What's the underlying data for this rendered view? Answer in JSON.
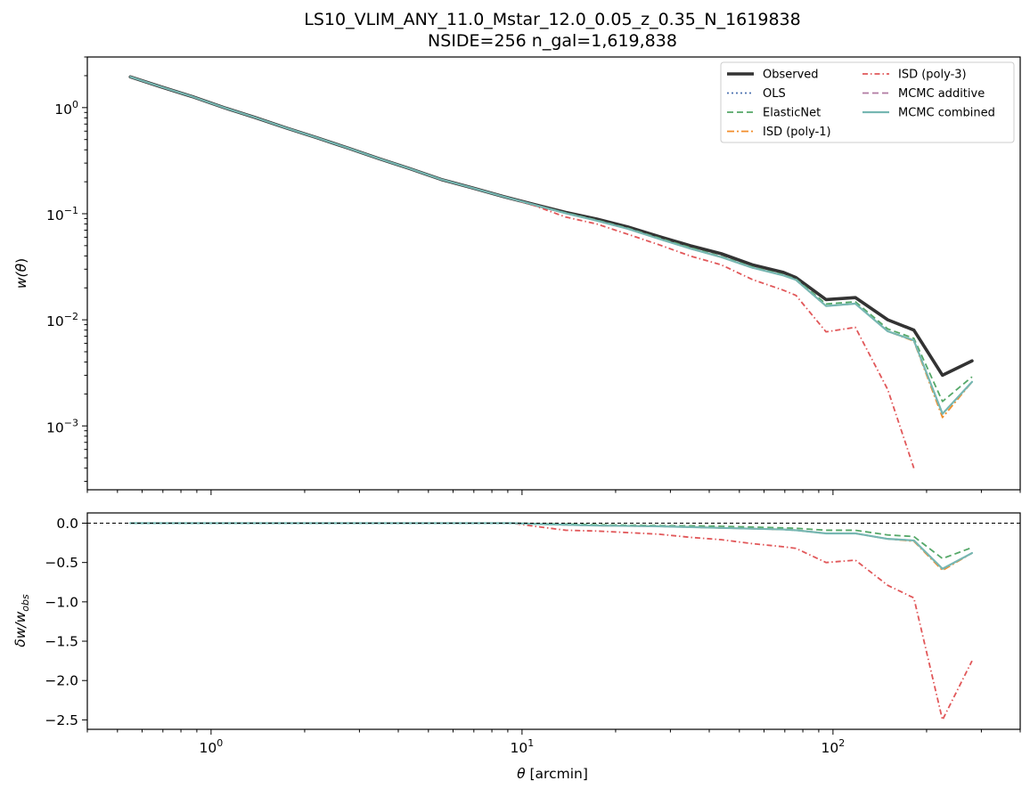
{
  "chart_data": [
    {
      "type": "line",
      "panel": "top",
      "title_line1": "LS10_VLIM_ANY_11.0_Mstar_12.0_0.05_z_0.35_N_1619838",
      "title_line2": "NSIDE=256  n_gal=1,619,838",
      "ylabel_main": "w(",
      "ylabel_theta": "θ",
      "ylabel_close": ")",
      "xscale": "log",
      "yscale": "log",
      "xlim": [
        0.4,
        400
      ],
      "ylim": [
        0.00025,
        3.0
      ],
      "legend_position": "upper right",
      "x_ticks": [
        {
          "value": 1,
          "base": "10",
          "exp": "0"
        },
        {
          "value": 10,
          "base": "10",
          "exp": "1"
        },
        {
          "value": 100,
          "base": "10",
          "exp": "2"
        }
      ],
      "y_ticks": [
        {
          "value": 1,
          "base": "10",
          "exp": "0"
        },
        {
          "value": 0.1,
          "base": "10",
          "exp": "−1"
        },
        {
          "value": 0.01,
          "base": "10",
          "exp": "−2"
        },
        {
          "value": 0.001,
          "base": "10",
          "exp": "−3"
        }
      ],
      "x": [
        0.55,
        0.69,
        0.87,
        1.1,
        1.38,
        1.74,
        2.19,
        2.76,
        3.47,
        4.37,
        5.5,
        6.93,
        8.72,
        10.98,
        13.82,
        17.4,
        21.9,
        27.57,
        34.71,
        43.7,
        55.0,
        69.3,
        76.0,
        95.0,
        118.0,
        150.0,
        182.0,
        225.0,
        280.0
      ],
      "series": [
        {
          "name": "Observed",
          "color": "#333333",
          "dash": "",
          "width": 3.6,
          "values": [
            1.95,
            1.57,
            1.27,
            1.0,
            0.81,
            0.645,
            0.52,
            0.415,
            0.33,
            0.265,
            0.21,
            0.175,
            0.145,
            0.122,
            0.103,
            0.089,
            0.075,
            0.061,
            0.05,
            0.042,
            0.033,
            0.028,
            0.025,
            0.0155,
            0.0162,
            0.01,
            0.008,
            0.003,
            0.0041
          ]
        },
        {
          "name": "OLS",
          "color": "#4c72b0",
          "dash": "2,3",
          "width": 1.8,
          "values": [
            1.95,
            1.57,
            1.27,
            1.0,
            0.81,
            0.645,
            0.52,
            0.415,
            0.33,
            0.265,
            0.21,
            0.175,
            0.145,
            0.121,
            0.101,
            0.086,
            0.072,
            0.058,
            0.047,
            0.039,
            0.031,
            0.0262,
            0.0238,
            0.0135,
            0.0142,
            0.0078,
            0.0064,
            0.0013,
            0.0026
          ]
        },
        {
          "name": "ElasticNet",
          "color": "#55a868",
          "dash": "7,4",
          "width": 1.8,
          "values": [
            1.95,
            1.57,
            1.27,
            1.0,
            0.81,
            0.645,
            0.52,
            0.415,
            0.33,
            0.265,
            0.21,
            0.175,
            0.145,
            0.121,
            0.102,
            0.087,
            0.073,
            0.059,
            0.048,
            0.0395,
            0.0315,
            0.0266,
            0.0242,
            0.0141,
            0.0148,
            0.0082,
            0.0067,
            0.0017,
            0.0029
          ]
        },
        {
          "name": "ISD (poly-1)",
          "color": "#f28e2b",
          "dash": "8,3,2,3",
          "width": 1.8,
          "values": [
            1.95,
            1.57,
            1.27,
            1.0,
            0.81,
            0.645,
            0.52,
            0.415,
            0.33,
            0.265,
            0.21,
            0.175,
            0.145,
            0.121,
            0.101,
            0.086,
            0.072,
            0.058,
            0.047,
            0.039,
            0.031,
            0.0262,
            0.0238,
            0.0135,
            0.0142,
            0.0078,
            0.0063,
            0.0012,
            0.0026
          ]
        },
        {
          "name": "ISD (poly-3)",
          "color": "#e15759",
          "dash": "6,3,1.5,3",
          "width": 1.8,
          "values": [
            1.95,
            1.57,
            1.27,
            1.0,
            0.81,
            0.645,
            0.52,
            0.415,
            0.33,
            0.265,
            0.21,
            0.175,
            0.145,
            0.119,
            0.093,
            0.08,
            0.064,
            0.051,
            0.04,
            0.033,
            0.024,
            0.019,
            0.017,
            0.0077,
            0.0085,
            0.0022,
            0.0004,
            null,
            null
          ]
        },
        {
          "name": "MCMC additive",
          "color": "#b07aa1",
          "dash": "7,4",
          "width": 1.8,
          "values": [
            1.95,
            1.57,
            1.27,
            1.0,
            0.81,
            0.645,
            0.52,
            0.415,
            0.33,
            0.265,
            0.21,
            0.175,
            0.145,
            0.121,
            0.101,
            0.086,
            0.072,
            0.058,
            0.047,
            0.039,
            0.031,
            0.0262,
            0.0238,
            0.0135,
            0.0142,
            0.0078,
            0.0064,
            0.0013,
            0.0026
          ]
        },
        {
          "name": "MCMC combined",
          "color": "#76b7b2",
          "dash": "",
          "width": 2.2,
          "values": [
            1.95,
            1.57,
            1.27,
            1.0,
            0.81,
            0.645,
            0.52,
            0.415,
            0.33,
            0.265,
            0.21,
            0.175,
            0.145,
            0.121,
            0.101,
            0.086,
            0.072,
            0.058,
            0.047,
            0.039,
            0.031,
            0.0262,
            0.0238,
            0.0135,
            0.0142,
            0.0078,
            0.0064,
            0.0013,
            0.0026
          ]
        }
      ]
    },
    {
      "type": "line",
      "panel": "bottom",
      "ylabel_main": "δw/w",
      "ylabel_sub": "obs",
      "xlabel_theta": "θ",
      "xlabel_rest": " [arcmin]",
      "xscale": "log",
      "yscale": "linear",
      "xlim": [
        0.4,
        400
      ],
      "ylim": [
        -2.62,
        0.13
      ],
      "reference_line": 0.0,
      "x_ticks": [
        {
          "value": 1,
          "base": "10",
          "exp": "0"
        },
        {
          "value": 10,
          "base": "10",
          "exp": "1"
        },
        {
          "value": 100,
          "base": "10",
          "exp": "2"
        }
      ],
      "y_ticks": [
        {
          "value": 0.0,
          "label": "0.0"
        },
        {
          "value": -0.5,
          "label": "−0.5"
        },
        {
          "value": -1.0,
          "label": "−1.0"
        },
        {
          "value": -1.5,
          "label": "−1.5"
        },
        {
          "value": -2.0,
          "label": "−2.0"
        },
        {
          "value": -2.5,
          "label": "−2.5"
        }
      ],
      "x": [
        0.55,
        1.0,
        5.0,
        9.3,
        11.0,
        13.82,
        17.4,
        21.9,
        27.57,
        34.71,
        43.7,
        55.0,
        69.3,
        76.0,
        95.0,
        118.0,
        150.0,
        182.0,
        225.0,
        280.0
      ],
      "series": [
        {
          "name": "OLS",
          "color": "#4c72b0",
          "dash": "2,3",
          "width": 1.8,
          "values": [
            0,
            0,
            0,
            0,
            -0.01,
            -0.02,
            -0.03,
            -0.035,
            -0.04,
            -0.05,
            -0.06,
            -0.07,
            -0.08,
            -0.09,
            -0.13,
            -0.13,
            -0.2,
            -0.22,
            -0.58,
            -0.38
          ]
        },
        {
          "name": "ElasticNet",
          "color": "#55a868",
          "dash": "7,4",
          "width": 1.8,
          "values": [
            0,
            0,
            0,
            0,
            -0.005,
            -0.01,
            -0.02,
            -0.025,
            -0.03,
            -0.035,
            -0.04,
            -0.05,
            -0.06,
            -0.065,
            -0.09,
            -0.09,
            -0.15,
            -0.17,
            -0.45,
            -0.31
          ]
        },
        {
          "name": "ISD (poly-1)",
          "color": "#f28e2b",
          "dash": "8,3,2,3",
          "width": 1.8,
          "values": [
            0,
            0,
            0,
            0,
            -0.01,
            -0.02,
            -0.03,
            -0.035,
            -0.04,
            -0.05,
            -0.06,
            -0.07,
            -0.08,
            -0.09,
            -0.13,
            -0.13,
            -0.2,
            -0.23,
            -0.6,
            -0.38
          ]
        },
        {
          "name": "ISD (poly-3)",
          "color": "#e15759",
          "dash": "6,3,1.5,3",
          "width": 1.8,
          "values": [
            0,
            0,
            0,
            0,
            -0.04,
            -0.09,
            -0.1,
            -0.12,
            -0.14,
            -0.18,
            -0.21,
            -0.26,
            -0.3,
            -0.32,
            -0.5,
            -0.47,
            -0.79,
            -0.95,
            -2.5,
            -1.75
          ]
        },
        {
          "name": "MCMC additive",
          "color": "#b07aa1",
          "dash": "7,4",
          "width": 1.8,
          "values": [
            0,
            0,
            0,
            0,
            -0.01,
            -0.02,
            -0.03,
            -0.035,
            -0.04,
            -0.05,
            -0.06,
            -0.07,
            -0.08,
            -0.09,
            -0.13,
            -0.13,
            -0.2,
            -0.22,
            -0.58,
            -0.38
          ]
        },
        {
          "name": "MCMC combined",
          "color": "#76b7b2",
          "dash": "",
          "width": 2.2,
          "values": [
            0,
            0,
            0,
            0,
            -0.01,
            -0.02,
            -0.03,
            -0.035,
            -0.04,
            -0.05,
            -0.06,
            -0.07,
            -0.08,
            -0.09,
            -0.13,
            -0.13,
            -0.2,
            -0.22,
            -0.58,
            -0.38
          ]
        }
      ]
    }
  ]
}
